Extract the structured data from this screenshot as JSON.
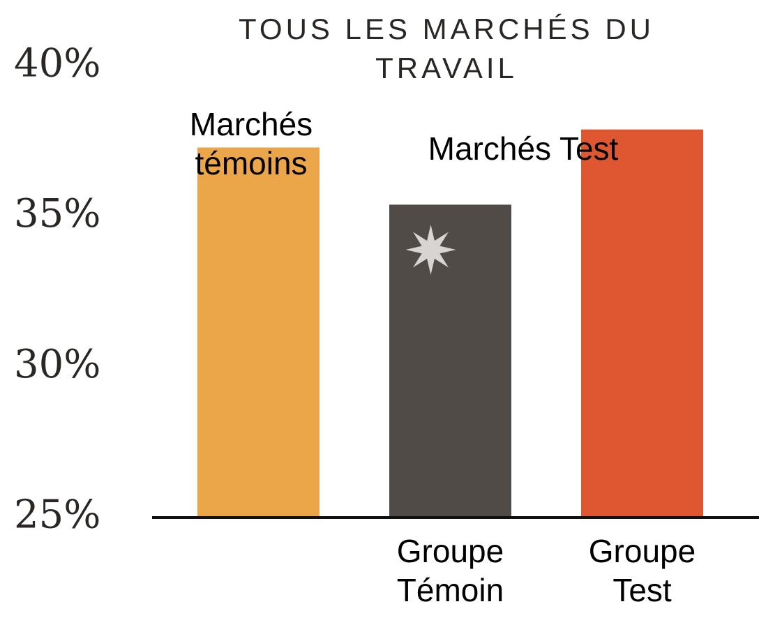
{
  "chart_data": {
    "type": "bar",
    "title": "TOUS LES MARCHÉS DU TRAVAIL",
    "categories": [
      null,
      "Groupe Témoin",
      "Groupe Test"
    ],
    "values": [
      37.3,
      35.4,
      37.9
    ],
    "colors": [
      "#eba64a",
      "#504b47",
      "#df5731"
    ],
    "ylim": [
      25,
      40
    ],
    "yticks": [
      {
        "value": 25,
        "label": "25%"
      },
      {
        "value": 30,
        "label": "30%"
      },
      {
        "value": 35,
        "label": "35%"
      },
      {
        "value": 40,
        "label": "40%"
      }
    ],
    "grid": false,
    "annotations": [
      {
        "text": "Marchés témoins"
      },
      {
        "text": "Marchés Test"
      }
    ]
  }
}
